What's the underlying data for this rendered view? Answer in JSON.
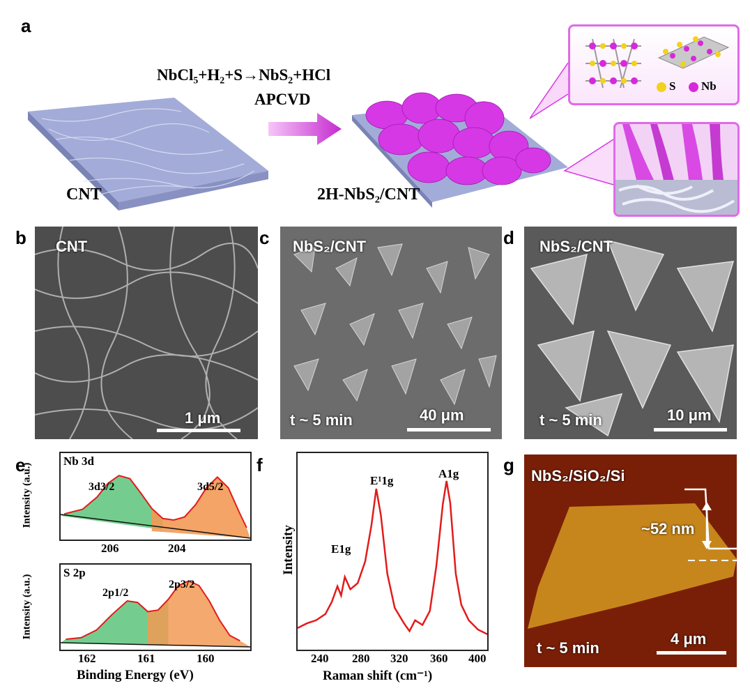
{
  "panels": {
    "a": {
      "label": "a",
      "reaction": "NbCl₅+H₂+S→NbS₂+HCl",
      "method": "APCVD",
      "left_caption": "CNT",
      "right_caption": "2H-NbS₂/CNT",
      "legend_s": "S",
      "legend_nb": "Nb",
      "colors": {
        "cnt": "#8e98c8",
        "nbs2": "#d638e6",
        "s_atom": "#f2d21c",
        "nb_atom": "#d62ad9",
        "arrow": "#c52bd0"
      }
    },
    "b": {
      "label": "b",
      "title": "CNT",
      "scale": "1 μm"
    },
    "c": {
      "label": "c",
      "title": "NbS₂/CNT",
      "time": "t ~ 5 min",
      "scale": "40 μm"
    },
    "d": {
      "label": "d",
      "title": "NbS₂/CNT",
      "time": "t ~ 5 min",
      "scale": "10 μm"
    },
    "e": {
      "label": "e",
      "top_title": "Nb 3d",
      "bottom_title": "S 2p",
      "ylabel": "Intensity (a.u.)",
      "xlabel": "Binding Energy (eV)",
      "peak_3d32": "3d3/2",
      "peak_3d52": "3d5/2",
      "peak_2p12": "2p1/2",
      "peak_2p32": "2p3/2",
      "top_ticks": [
        "206",
        "204"
      ],
      "bottom_ticks": [
        "162",
        "161",
        "160"
      ]
    },
    "f": {
      "label": "f",
      "ylabel": "Intensity",
      "xlabel": "Raman shift (cm⁻¹)",
      "ticks": [
        "240",
        "280",
        "320",
        "360",
        "400"
      ],
      "peak_e1g": "E1g",
      "peak_e1g1": "E¹1g",
      "peak_a1g": "A1g"
    },
    "g": {
      "label": "g",
      "title": "NbS₂/SiO₂/Si",
      "height": "~52 nm",
      "time": "t ~ 5 min",
      "scale": "4 μm"
    }
  },
  "chart_data": [
    {
      "type": "line",
      "title": "Nb 3d",
      "xlabel": "Binding Energy (eV)",
      "ylabel": "Intensity (a.u.)",
      "xlim": [
        207.5,
        202.3
      ],
      "x": [
        207.4,
        206.9,
        206.5,
        206.2,
        205.9,
        205.6,
        205.3,
        205.0,
        204.7,
        204.4,
        204.1,
        203.8,
        203.5,
        203.2,
        202.9,
        202.6,
        202.4
      ],
      "series": [
        {
          "values": [
            0.28,
            0.34,
            0.5,
            0.68,
            0.78,
            0.74,
            0.55,
            0.35,
            0.22,
            0.2,
            0.24,
            0.4,
            0.62,
            0.76,
            0.62,
            0.3,
            0.1
          ]
        }
      ]
    },
    {
      "type": "line",
      "title": "S 2p",
      "xlabel": "Binding Energy (eV)",
      "ylabel": "Intensity (a.u.)",
      "xlim": [
        163.0,
        159.3
      ],
      "x": [
        162.9,
        162.6,
        162.3,
        162.0,
        161.7,
        161.5,
        161.3,
        161.1,
        160.9,
        160.7,
        160.5,
        160.3,
        160.1,
        159.9,
        159.7,
        159.5
      ],
      "series": [
        {
          "values": [
            0.1,
            0.12,
            0.22,
            0.42,
            0.6,
            0.58,
            0.46,
            0.48,
            0.62,
            0.8,
            0.86,
            0.8,
            0.6,
            0.35,
            0.15,
            0.08
          ]
        }
      ]
    },
    {
      "type": "line",
      "xlabel": "Raman shift (cm⁻¹)",
      "ylabel": "Intensity",
      "xlim": [
        215,
        420
      ],
      "x": [
        215,
        225,
        235,
        245,
        252,
        258,
        262,
        266,
        272,
        280,
        288,
        295,
        300,
        305,
        312,
        320,
        330,
        336,
        342,
        350,
        358,
        365,
        372,
        376,
        380,
        386,
        392,
        400,
        410,
        420
      ],
      "series": [
        {
          "values": [
            0.05,
            0.08,
            0.1,
            0.14,
            0.22,
            0.32,
            0.26,
            0.38,
            0.3,
            0.34,
            0.48,
            0.72,
            0.95,
            0.78,
            0.4,
            0.18,
            0.08,
            0.03,
            0.1,
            0.07,
            0.16,
            0.45,
            0.85,
            1.0,
            0.86,
            0.4,
            0.2,
            0.1,
            0.04,
            0.01
          ]
        }
      ]
    }
  ]
}
